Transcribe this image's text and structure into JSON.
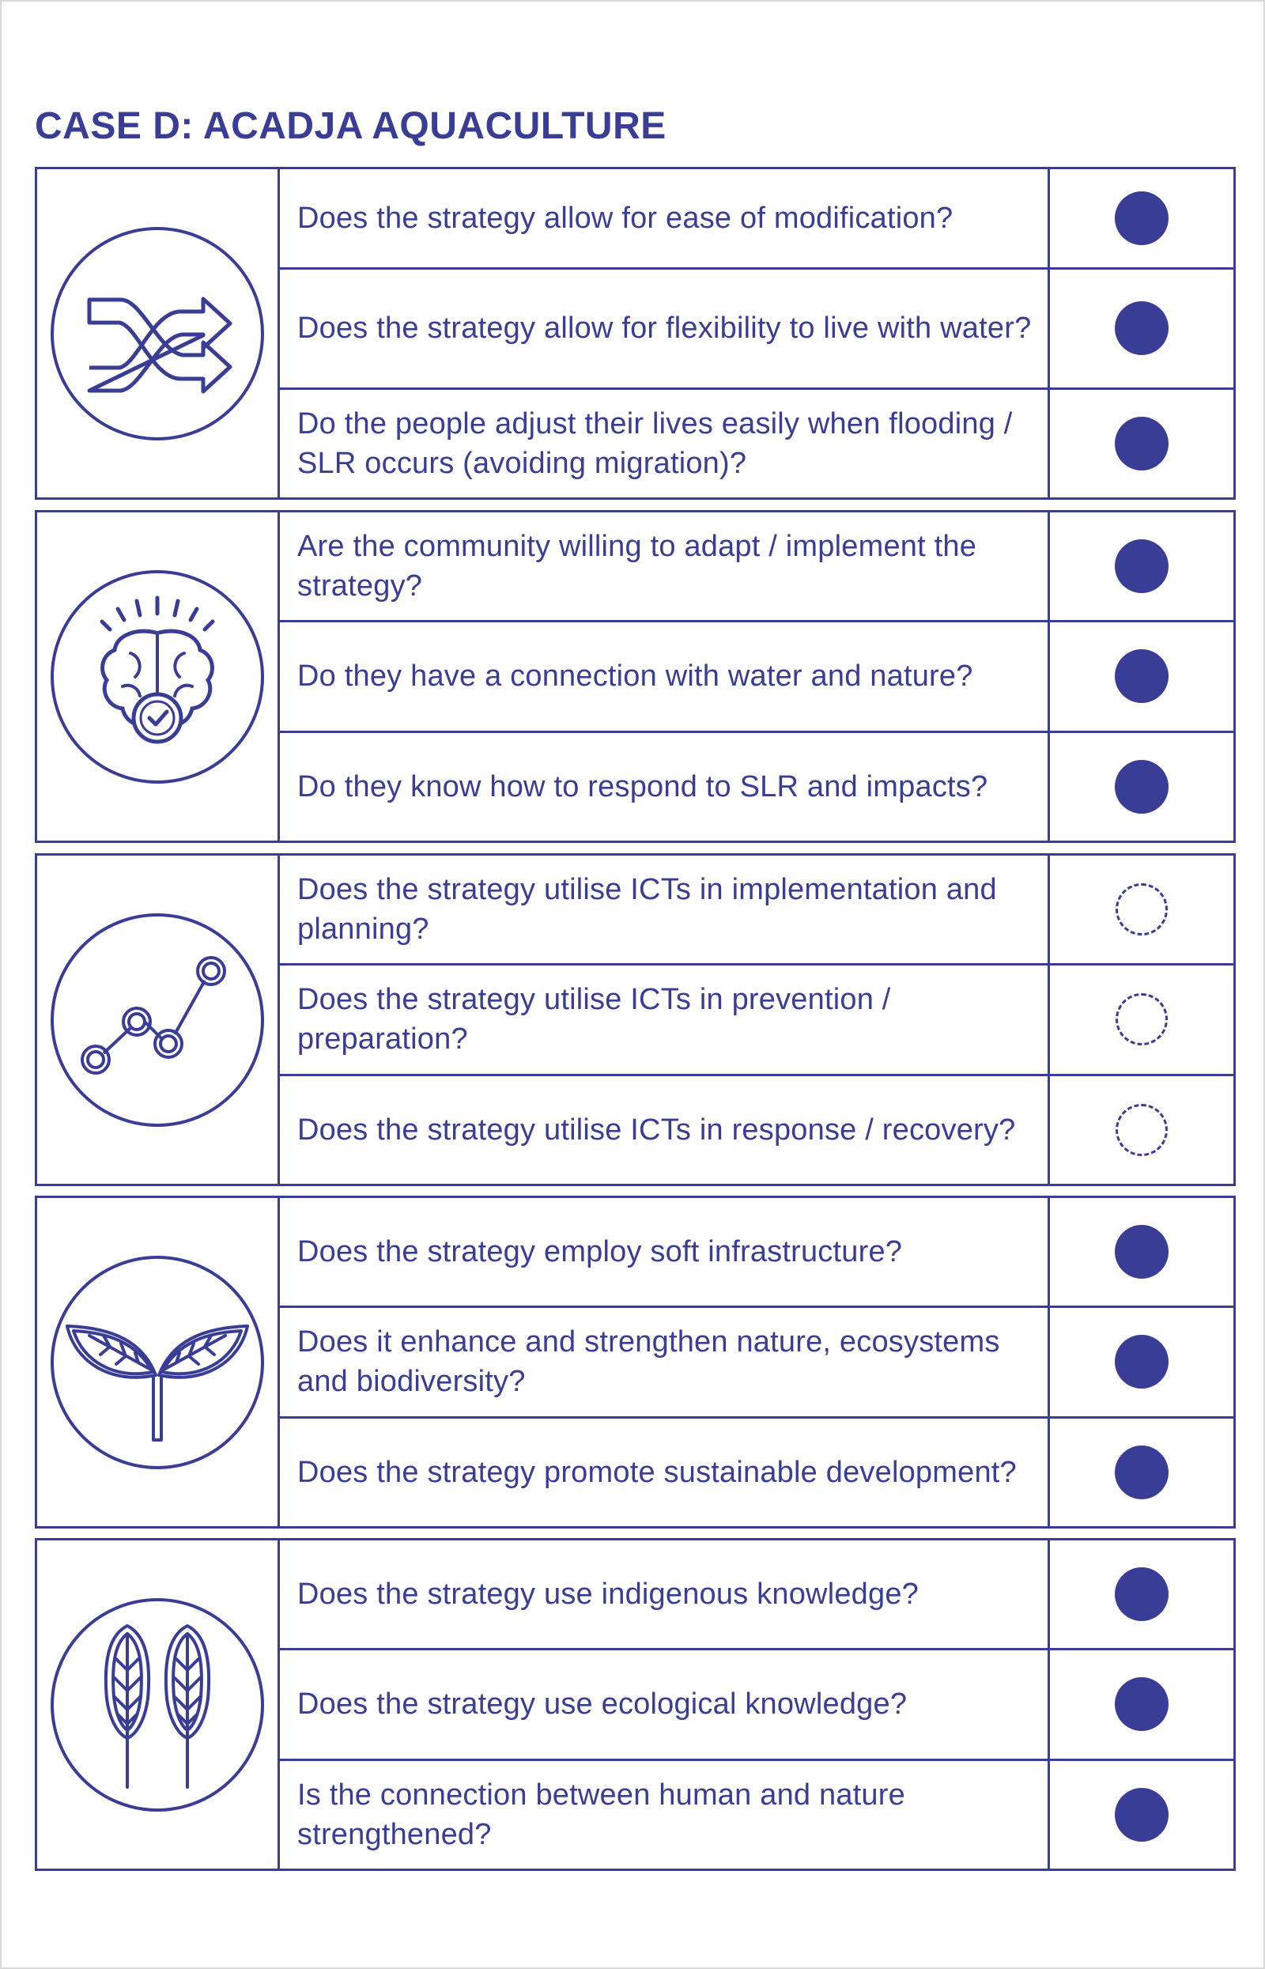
{
  "title": "CASE D: ACADJA AQUACULTURE",
  "colors": {
    "accent": "#3a3d96",
    "background": "#ffffff"
  },
  "sections": [
    {
      "icon": "shuffle-arrows-icon",
      "rows": [
        {
          "question": "Does the strategy allow for ease of modification?",
          "status": "filled"
        },
        {
          "question": "Does the strategy allow for flexibility to live with water?",
          "status": "filled"
        },
        {
          "question": "Do the people adjust their lives easily when flooding / SLR occurs (avoiding migration)?",
          "status": "filled"
        }
      ]
    },
    {
      "icon": "brain-check-icon",
      "rows": [
        {
          "question": "Are the community willing to adapt / implement the strategy?",
          "status": "filled"
        },
        {
          "question": "Do they have a connection with water and nature?",
          "status": "filled"
        },
        {
          "question": "Do they know how to respond to SLR and impacts?",
          "status": "filled"
        }
      ]
    },
    {
      "icon": "connected-nodes-icon",
      "rows": [
        {
          "question": "Does the strategy utilise ICTs in implementation and planning?",
          "status": "empty"
        },
        {
          "question": "Does the strategy utilise ICTs in prevention / preparation?",
          "status": "empty"
        },
        {
          "question": "Does the strategy utilise ICTs in response / recovery?",
          "status": "empty"
        }
      ]
    },
    {
      "icon": "leaves-sprout-icon",
      "rows": [
        {
          "question": "Does the strategy employ soft infrastructure?",
          "status": "filled"
        },
        {
          "question": "Does it enhance and strengthen nature, ecosystems and biodiversity?",
          "status": "filled"
        },
        {
          "question": "Does the strategy promote sustainable development?",
          "status": "filled"
        }
      ]
    },
    {
      "icon": "wheat-icon",
      "rows": [
        {
          "question": "Does the strategy use indigenous knowledge?",
          "status": "filled"
        },
        {
          "question": "Does the strategy use ecological knowledge?",
          "status": "filled"
        },
        {
          "question": "Is the connection between human and nature strengthened?",
          "status": "filled"
        }
      ]
    }
  ]
}
